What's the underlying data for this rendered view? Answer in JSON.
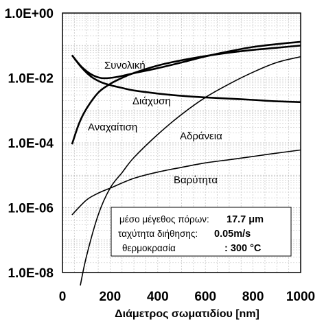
{
  "chart_data": {
    "type": "line",
    "xlabel": "Διάμετρος σωματιδίου [nm]",
    "ylabel": "",
    "x_scale": "linear",
    "y_scale": "log",
    "xlim": [
      0,
      1000
    ],
    "ylim": [
      1e-08,
      1
    ],
    "x_ticks": [
      {
        "value": 0,
        "label": "0"
      },
      {
        "value": 200,
        "label": "200"
      },
      {
        "value": 400,
        "label": "400"
      },
      {
        "value": 600,
        "label": "600"
      },
      {
        "value": 800,
        "label": "800"
      },
      {
        "value": 1000,
        "label": "1000"
      }
    ],
    "y_ticks": [
      {
        "value": 1,
        "label": "1.0E+00"
      },
      {
        "value": 0.01,
        "label": "1.0E-02"
      },
      {
        "value": 0.0001,
        "label": "1.0E-04"
      },
      {
        "value": 1e-06,
        "label": "1.0E-06"
      },
      {
        "value": 1e-08,
        "label": "1.0E-08"
      }
    ],
    "grid": true,
    "series": [
      {
        "name": "Συνολική",
        "x": [
          40,
          80,
          120,
          160,
          200,
          250,
          300,
          400,
          500,
          600,
          700,
          800,
          900,
          1000
        ],
        "y": [
          0.05,
          0.022,
          0.013,
          0.01,
          0.01,
          0.0115,
          0.014,
          0.02,
          0.03,
          0.046,
          0.066,
          0.09,
          0.11,
          0.13
        ]
      },
      {
        "name": "Διάχυση",
        "x": [
          40,
          80,
          120,
          160,
          200,
          250,
          300,
          400,
          500,
          600,
          700,
          800,
          900,
          1000
        ],
        "y": [
          0.05,
          0.021,
          0.011,
          0.0075,
          0.006,
          0.0049,
          0.0041,
          0.0033,
          0.0028,
          0.0025,
          0.0023,
          0.0021,
          0.0019,
          0.0018
        ]
      },
      {
        "name": "Αναχαίτιση",
        "x": [
          40,
          70,
          100,
          150,
          200,
          250,
          300,
          400,
          500,
          600,
          700,
          800,
          900,
          1000
        ],
        "y": [
          9e-05,
          0.0004,
          0.0011,
          0.0035,
          0.0065,
          0.01,
          0.0142,
          0.024,
          0.035,
          0.047,
          0.06,
          0.073,
          0.085,
          0.1
        ]
      },
      {
        "name": "Αδράνεια",
        "x": [
          75,
          100,
          150,
          200,
          250,
          300,
          400,
          500,
          600,
          700,
          800,
          900,
          1000
        ],
        "y": [
          4e-09,
          3e-08,
          6e-07,
          4e-06,
          1.2e-05,
          3.5e-05,
          0.00018,
          0.00075,
          0.0025,
          0.0065,
          0.015,
          0.03,
          0.045
        ]
      },
      {
        "name": "Βαρύτητα",
        "x": [
          40,
          100,
          150,
          200,
          300,
          400,
          500,
          600,
          700,
          800,
          900,
          1000
        ],
        "y": [
          6e-07,
          1.7e-06,
          2.8e-06,
          4e-06,
          8e-06,
          1.25e-05,
          1.75e-05,
          2.4e-05,
          3e-05,
          3.8e-05,
          4.8e-05,
          6e-05
        ]
      }
    ],
    "annotations": [
      {
        "label": "μέσο μέγεθος πόρων:",
        "value": "17.7 μm"
      },
      {
        "label": "ταχύτητα διήθησης:",
        "value": "0.05m/s"
      },
      {
        "label": "θερμοκρασία",
        "value": ": 300 °C"
      }
    ]
  }
}
